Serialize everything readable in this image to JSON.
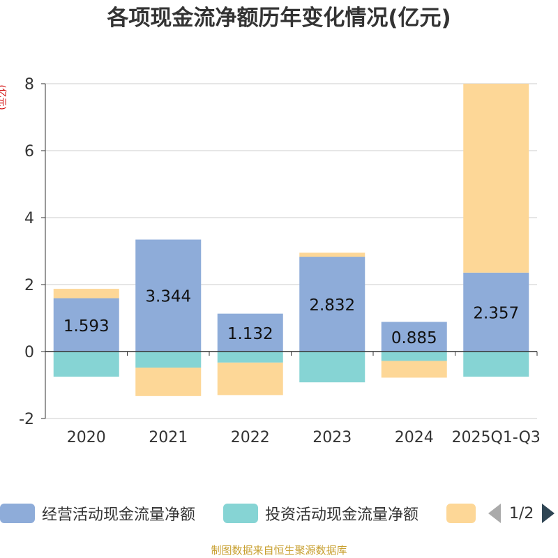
{
  "chart_data": {
    "type": "bar",
    "stacked": true,
    "title": "各项现金流净额历年变化情况(亿元)",
    "ylabel": "(亿元)",
    "categories": [
      "2020",
      "2021",
      "2022",
      "2023",
      "2024",
      "2025Q1-Q3"
    ],
    "ylim": [
      -2,
      8
    ],
    "yticks": [
      -2,
      0,
      2,
      4,
      6,
      8
    ],
    "grid": true,
    "legend_position": "bottom",
    "series": [
      {
        "name": "经营活动现金流量净额",
        "color": "#8eacd9",
        "values": [
          1.593,
          3.344,
          1.132,
          2.832,
          0.885,
          2.357
        ],
        "labels": [
          "1.593",
          "3.344",
          "1.132",
          "2.832",
          "0.885",
          "2.357"
        ]
      },
      {
        "name": "投资活动现金流量净额",
        "color": "#86d4d4",
        "values": [
          -0.75,
          -0.48,
          -0.33,
          -0.92,
          -0.28,
          -0.75
        ]
      },
      {
        "name": "",
        "color": "#fdd797",
        "values": [
          0.28,
          -0.85,
          -0.97,
          0.12,
          -0.5,
          5.65
        ]
      }
    ]
  },
  "legend": {
    "page": "1/2"
  },
  "source_note": "制图数据来自恒生聚源数据库"
}
